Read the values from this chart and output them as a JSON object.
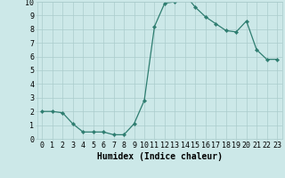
{
  "x": [
    0,
    1,
    2,
    3,
    4,
    5,
    6,
    7,
    8,
    9,
    10,
    11,
    12,
    13,
    14,
    15,
    16,
    17,
    18,
    19,
    20,
    21,
    22,
    23
  ],
  "y": [
    2.0,
    2.0,
    1.9,
    1.1,
    0.5,
    0.5,
    0.5,
    0.3,
    0.3,
    1.1,
    2.8,
    8.2,
    9.9,
    10.0,
    10.5,
    9.6,
    8.9,
    8.4,
    7.9,
    7.8,
    8.6,
    6.5,
    5.8,
    5.8
  ],
  "line_color": "#2e7d70",
  "marker": "D",
  "marker_size": 2.2,
  "bg_color": "#cce8e8",
  "grid_color": "#aacccc",
  "xlabel": "Humidex (Indice chaleur)",
  "xlim": [
    -0.5,
    23.5
  ],
  "ylim": [
    0,
    10
  ],
  "ytick_values": [
    0,
    1,
    2,
    3,
    4,
    5,
    6,
    7,
    8,
    9,
    10
  ],
  "label_fontsize": 7.0,
  "tick_fontsize": 6.0
}
